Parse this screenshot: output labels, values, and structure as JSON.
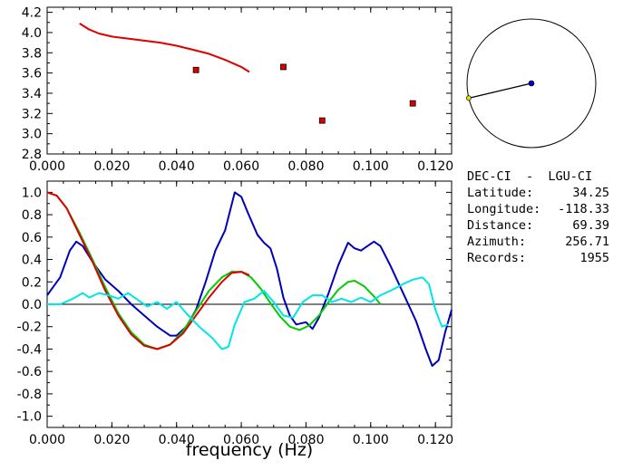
{
  "chart_data": [
    {
      "type": "scatter",
      "panel": "top",
      "xlim": [
        0.0,
        0.125
      ],
      "ylim": [
        2.8,
        4.25
      ],
      "x_ticks": [
        "0.000",
        "0.020",
        "0.040",
        "0.060",
        "0.080",
        "0.100",
        "0.120"
      ],
      "y_ticks": [
        "2.8",
        "3.0",
        "3.2",
        "3.4",
        "3.6",
        "3.8",
        "4.0",
        "4.2"
      ],
      "grid": false,
      "series": [
        {
          "color": "#dd0000",
          "kind": "line",
          "points": [
            [
              0.01,
              4.09
            ],
            [
              0.013,
              4.03
            ],
            [
              0.016,
              3.99
            ],
            [
              0.02,
              3.96
            ],
            [
              0.025,
              3.94
            ],
            [
              0.03,
              3.92
            ],
            [
              0.035,
              3.9
            ],
            [
              0.04,
              3.87
            ],
            [
              0.045,
              3.83
            ],
            [
              0.05,
              3.79
            ],
            [
              0.055,
              3.73
            ],
            [
              0.06,
              3.66
            ],
            [
              0.0625,
              3.61
            ]
          ]
        },
        {
          "color": "#dd0000",
          "kind": "markers",
          "points": [
            [
              0.046,
              3.63
            ],
            [
              0.073,
              3.66
            ],
            [
              0.085,
              3.13
            ],
            [
              0.113,
              3.3
            ]
          ]
        }
      ]
    },
    {
      "type": "line",
      "panel": "bottom",
      "xlabel": "frequency (Hz)",
      "xlim": [
        0.0,
        0.125
      ],
      "ylim": [
        -1.1,
        1.1
      ],
      "x_ticks": [
        "0.000",
        "0.020",
        "0.040",
        "0.060",
        "0.080",
        "0.100",
        "0.120"
      ],
      "y_ticks": [
        "1.0",
        "0.8",
        "0.6",
        "0.4",
        "0.2",
        "0.0",
        "-0.2",
        "-0.4",
        "-0.6",
        "-0.8",
        "-1.0"
      ],
      "zero_line": true,
      "series": [
        {
          "color": "#0000bb",
          "points": [
            [
              0.0,
              0.08
            ],
            [
              0.004,
              0.24
            ],
            [
              0.007,
              0.48
            ],
            [
              0.009,
              0.56
            ],
            [
              0.011,
              0.52
            ],
            [
              0.014,
              0.38
            ],
            [
              0.018,
              0.22
            ],
            [
              0.022,
              0.12
            ],
            [
              0.026,
              0.0
            ],
            [
              0.03,
              -0.1
            ],
            [
              0.034,
              -0.2
            ],
            [
              0.038,
              -0.28
            ],
            [
              0.04,
              -0.28
            ],
            [
              0.043,
              -0.2
            ],
            [
              0.046,
              -0.05
            ],
            [
              0.049,
              0.2
            ],
            [
              0.052,
              0.48
            ],
            [
              0.055,
              0.66
            ],
            [
              0.058,
              1.0
            ],
            [
              0.06,
              0.96
            ],
            [
              0.062,
              0.82
            ],
            [
              0.065,
              0.62
            ],
            [
              0.067,
              0.55
            ],
            [
              0.069,
              0.5
            ],
            [
              0.071,
              0.32
            ],
            [
              0.073,
              0.06
            ],
            [
              0.075,
              -0.1
            ],
            [
              0.077,
              -0.18
            ],
            [
              0.08,
              -0.16
            ],
            [
              0.082,
              -0.22
            ],
            [
              0.084,
              -0.12
            ],
            [
              0.087,
              0.1
            ],
            [
              0.09,
              0.35
            ],
            [
              0.093,
              0.55
            ],
            [
              0.095,
              0.5
            ],
            [
              0.097,
              0.48
            ],
            [
              0.099,
              0.52
            ],
            [
              0.101,
              0.56
            ],
            [
              0.103,
              0.52
            ],
            [
              0.106,
              0.35
            ],
            [
              0.11,
              0.1
            ],
            [
              0.114,
              -0.15
            ],
            [
              0.117,
              -0.4
            ],
            [
              0.119,
              -0.55
            ],
            [
              0.121,
              -0.5
            ],
            [
              0.123,
              -0.25
            ],
            [
              0.125,
              -0.05
            ]
          ]
        },
        {
          "color": "#00cc00",
          "points": [
            [
              0.0,
              1.0
            ],
            [
              0.003,
              0.97
            ],
            [
              0.006,
              0.86
            ],
            [
              0.01,
              0.64
            ],
            [
              0.014,
              0.4
            ],
            [
              0.018,
              0.15
            ],
            [
              0.022,
              -0.08
            ],
            [
              0.026,
              -0.25
            ],
            [
              0.03,
              -0.36
            ],
            [
              0.034,
              -0.4
            ],
            [
              0.038,
              -0.36
            ],
            [
              0.042,
              -0.24
            ],
            [
              0.046,
              -0.06
            ],
            [
              0.05,
              0.12
            ],
            [
              0.054,
              0.24
            ],
            [
              0.057,
              0.29
            ],
            [
              0.06,
              0.29
            ],
            [
              0.063,
              0.24
            ],
            [
              0.066,
              0.14
            ],
            [
              0.069,
              0.01
            ],
            [
              0.072,
              -0.11
            ],
            [
              0.075,
              -0.2
            ],
            [
              0.078,
              -0.23
            ],
            [
              0.081,
              -0.19
            ],
            [
              0.084,
              -0.1
            ],
            [
              0.087,
              0.02
            ],
            [
              0.09,
              0.13
            ],
            [
              0.093,
              0.2
            ],
            [
              0.095,
              0.21
            ],
            [
              0.098,
              0.16
            ],
            [
              0.101,
              0.07
            ],
            [
              0.103,
              0.0
            ]
          ]
        },
        {
          "color": "#dd0000",
          "points": [
            [
              0.0,
              1.0
            ],
            [
              0.003,
              0.97
            ],
            [
              0.006,
              0.86
            ],
            [
              0.01,
              0.62
            ],
            [
              0.014,
              0.38
            ],
            [
              0.018,
              0.12
            ],
            [
              0.022,
              -0.1
            ],
            [
              0.026,
              -0.27
            ],
            [
              0.03,
              -0.37
            ],
            [
              0.034,
              -0.4
            ],
            [
              0.038,
              -0.36
            ],
            [
              0.042,
              -0.26
            ],
            [
              0.046,
              -0.1
            ],
            [
              0.05,
              0.06
            ],
            [
              0.054,
              0.2
            ],
            [
              0.057,
              0.28
            ],
            [
              0.06,
              0.29
            ],
            [
              0.0625,
              0.26
            ]
          ]
        },
        {
          "color": "#00e5e5",
          "points": [
            [
              0.0,
              0.0
            ],
            [
              0.004,
              0.0
            ],
            [
              0.008,
              0.05
            ],
            [
              0.011,
              0.1
            ],
            [
              0.013,
              0.06
            ],
            [
              0.016,
              0.1
            ],
            [
              0.019,
              0.08
            ],
            [
              0.022,
              0.05
            ],
            [
              0.025,
              0.1
            ],
            [
              0.028,
              0.04
            ],
            [
              0.031,
              -0.02
            ],
            [
              0.034,
              0.02
            ],
            [
              0.037,
              -0.04
            ],
            [
              0.04,
              0.02
            ],
            [
              0.043,
              -0.08
            ],
            [
              0.047,
              -0.2
            ],
            [
              0.051,
              -0.3
            ],
            [
              0.054,
              -0.4
            ],
            [
              0.056,
              -0.38
            ],
            [
              0.058,
              -0.18
            ],
            [
              0.061,
              0.02
            ],
            [
              0.064,
              0.05
            ],
            [
              0.067,
              0.12
            ],
            [
              0.07,
              0.02
            ],
            [
              0.073,
              -0.1
            ],
            [
              0.076,
              -0.12
            ],
            [
              0.079,
              0.02
            ],
            [
              0.082,
              0.08
            ],
            [
              0.085,
              0.08
            ],
            [
              0.088,
              0.02
            ],
            [
              0.091,
              0.05
            ],
            [
              0.094,
              0.02
            ],
            [
              0.097,
              0.06
            ],
            [
              0.1,
              0.02
            ],
            [
              0.103,
              0.08
            ],
            [
              0.106,
              0.12
            ],
            [
              0.11,
              0.18
            ],
            [
              0.113,
              0.22
            ],
            [
              0.116,
              0.24
            ],
            [
              0.118,
              0.18
            ],
            [
              0.12,
              -0.05
            ],
            [
              0.122,
              -0.2
            ],
            [
              0.124,
              -0.18
            ]
          ]
        }
      ]
    }
  ],
  "map_inset": {
    "circle_color": "#000000",
    "station_color": "#0000bb",
    "source_color": "#dddd00",
    "azimuth_deg": 256.71
  },
  "info": {
    "title": "DEC-CI  -  LGU-CI",
    "latitude_label": "Latitude:",
    "latitude_value": "34.25",
    "longitude_label": "Longitude:",
    "longitude_value": "-118.33",
    "distance_label": "Distance:",
    "distance_value": "69.39",
    "azimuth_label": "Azimuth:",
    "azimuth_value": "256.71",
    "records_label": "Records:",
    "records_value": "1955"
  }
}
